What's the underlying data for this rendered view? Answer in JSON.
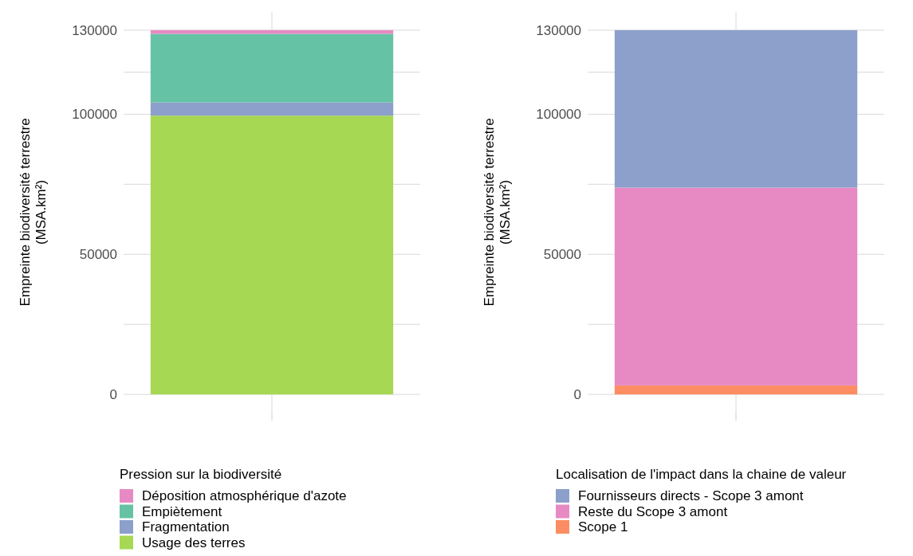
{
  "chart_data": [
    {
      "type": "bar",
      "stacked": true,
      "ylabel": "Empreinte biodiversité terrestre\n(MSA.km²)",
      "legend_title": "Pression sur la biodiversité",
      "categories": [
        null
      ],
      "series": [
        {
          "name": "Usage des terres",
          "color": "#a6d854",
          "values": [
            99500
          ]
        },
        {
          "name": "Fragmentation",
          "color": "#8da0cb",
          "values": [
            4700
          ]
        },
        {
          "name": "Empiètement",
          "color": "#66c2a5",
          "values": [
            24500
          ]
        },
        {
          "name": "Déposition atmosphérique d'azote",
          "color": "#e78ac3",
          "values": [
            1300
          ]
        }
      ],
      "ylim": [
        -6500,
        136500
      ],
      "yticks": [
        0,
        {
          "value": 25000,
          "label": null
        },
        50000,
        {
          "value": 75000,
          "label": null
        },
        100000,
        {
          "value": 115000,
          "label": null
        },
        130000
      ],
      "grid": true,
      "legend": "bottom"
    },
    {
      "type": "bar",
      "stacked": true,
      "ylabel": "Empreinte biodiversité terrestre\n(MSA.km²)",
      "legend_title": "Localisation de l'impact dans la chaine de valeur",
      "categories": [
        null
      ],
      "series": [
        {
          "name": "Scope 1",
          "color": "#fc8d62",
          "values": [
            3200
          ]
        },
        {
          "name": "Reste du Scope 3 amont",
          "color": "#e78ac3",
          "values": [
            70600
          ]
        },
        {
          "name": "Fournisseurs directs - Scope 3 amont",
          "color": "#8da0cb",
          "values": [
            56200
          ]
        }
      ],
      "ylim": [
        -6500,
        136500
      ],
      "yticks": [
        0,
        {
          "value": 25000,
          "label": null
        },
        50000,
        {
          "value": 75000,
          "label": null
        },
        100000,
        {
          "value": 115000,
          "label": null
        },
        130000
      ],
      "grid": true,
      "legend": "bottom"
    }
  ]
}
